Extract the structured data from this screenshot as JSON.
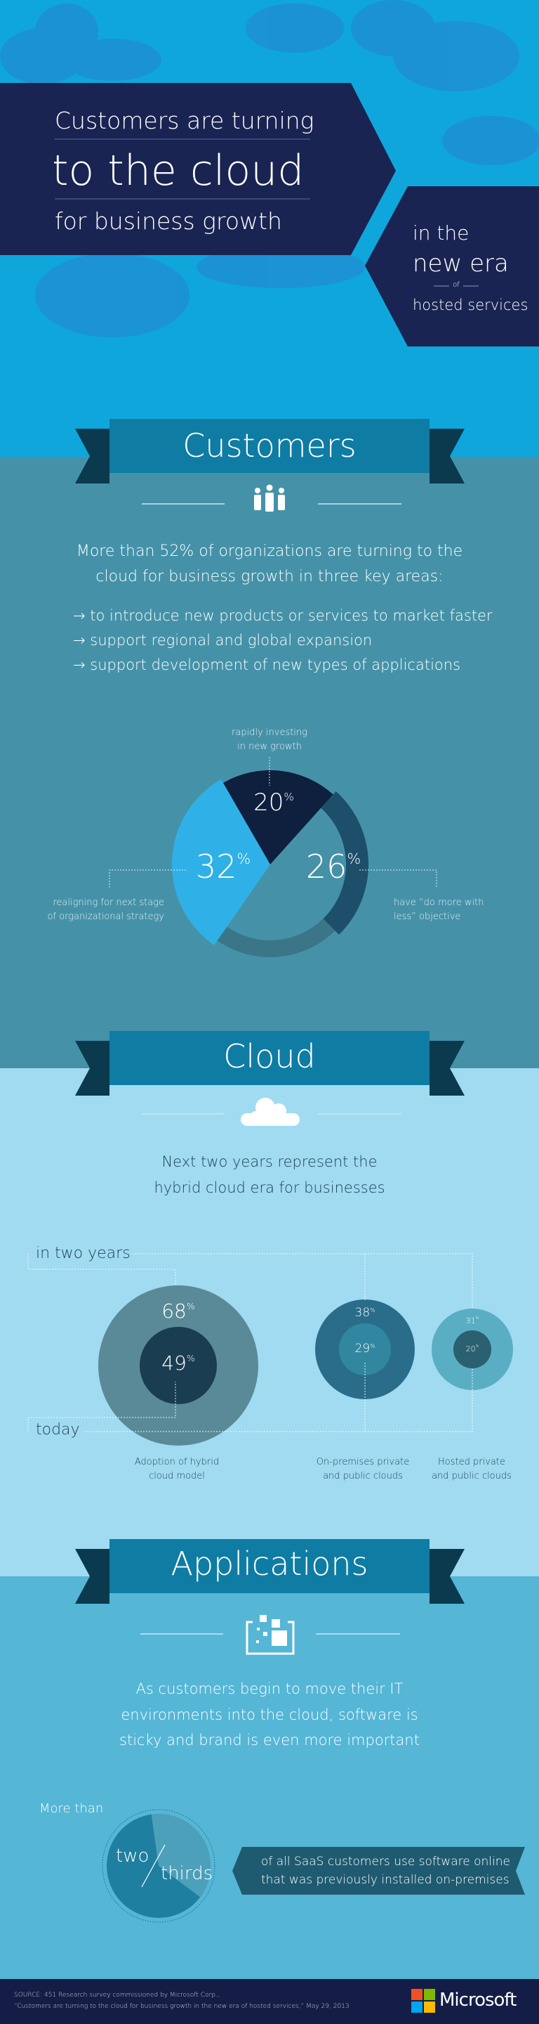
{
  "hero": {
    "line1": "Customers are turning",
    "line2": "to the cloud",
    "line3": "for business growth",
    "sub1": "in the",
    "sub2": "new era",
    "sub3": "of",
    "sub4": "hosted services"
  },
  "customers": {
    "title": "Customers",
    "icon": "people-icon",
    "intro1": "More than 52% of organizations are turning to the",
    "intro2": "cloud for business growth in three key areas:",
    "bullets": [
      "to introduce new products or services to market faster",
      "support regional and global expansion",
      "support development of new types of applications"
    ],
    "pie": [
      {
        "value": 20,
        "label1": "rapidly investing",
        "label2": "in new growth",
        "color": "#0f1f3e"
      },
      {
        "value": 26,
        "label1": "have “do more with",
        "label2": "less” objective",
        "color": "#1d4f6a"
      },
      {
        "value": 32,
        "label1": "realigning for next stage",
        "label2": "of organizational strategy",
        "color": "#2fb1e8"
      }
    ]
  },
  "cloud": {
    "title": "Cloud",
    "icon": "cloud-icon",
    "intro1": "Next two years represent the",
    "intro2": "hybrid cloud era for businesses",
    "future_label": "in two years",
    "today_label": "today",
    "bubbles": [
      {
        "future": 68,
        "today": 49,
        "label1": "Adoption of hybrid",
        "label2": "cloud model"
      },
      {
        "future": 38,
        "today": 29,
        "label1": "On-premises private",
        "label2": "and public clouds"
      },
      {
        "future": 31,
        "today": 20,
        "label1": "Hosted private",
        "label2": "and public clouds"
      }
    ]
  },
  "applications": {
    "title": "Applications",
    "icon": "apps-icon",
    "intro1": "As customers begin to move their IT",
    "intro2": "environments into the cloud, software is",
    "intro3": "sticky and brand is even more important",
    "more_than": "More than",
    "two": "two",
    "thirds": "thirds",
    "stat1": "of all SaaS customers use software online",
    "stat2": "that was previously installed on-premises"
  },
  "footer": {
    "source1": "SOURCE: 451 Research survey commissioned by Microsoft Corp.,",
    "source2": "“Customers are turning to the cloud for business growth in the new era of hosted services,” May 29, 2013",
    "brand": "Microsoft"
  },
  "colors": {
    "sky": "#0fa6dc",
    "navy": "#1a2452",
    "teal": "#4592a8",
    "light": "#a0dbf1",
    "apps": "#55b6d6",
    "ribbon": "#0f7ca3",
    "ribbon_tail": "#0b3a4e"
  }
}
